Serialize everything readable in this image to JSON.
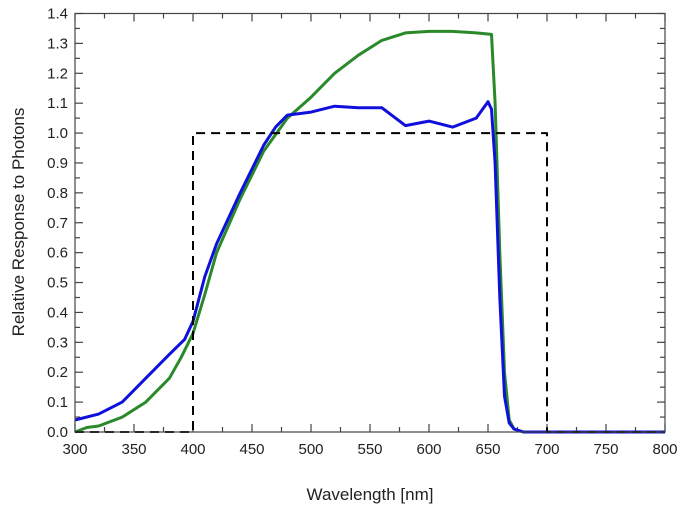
{
  "chart_data": {
    "type": "line",
    "title": "",
    "xlabel": "Wavelength [nm]",
    "ylabel": "Relative Response to Photons",
    "xlim": [
      300,
      800
    ],
    "ylim": [
      0,
      1.4
    ],
    "xticks": [
      300,
      350,
      400,
      450,
      500,
      550,
      600,
      650,
      700,
      750,
      800
    ],
    "yticks": [
      "0.0",
      "0.1",
      "0.2",
      "0.3",
      "0.4",
      "0.5",
      "0.6",
      "0.7",
      "0.8",
      "0.9",
      "1.0",
      "1.1",
      "1.2",
      "1.3",
      "1.4"
    ],
    "grid": false,
    "legend": "none",
    "series": [
      {
        "color": "#2a8a2a",
        "style": "solid",
        "x": [
          300,
          310,
          320,
          340,
          360,
          380,
          390,
          400,
          410,
          420,
          440,
          460,
          480,
          500,
          520,
          540,
          560,
          580,
          600,
          620,
          640,
          653,
          656,
          660,
          664,
          668,
          672,
          680,
          800
        ],
        "y": [
          0.0,
          0.015,
          0.02,
          0.05,
          0.1,
          0.18,
          0.25,
          0.33,
          0.46,
          0.6,
          0.78,
          0.94,
          1.05,
          1.12,
          1.2,
          1.26,
          1.31,
          1.335,
          1.34,
          1.34,
          1.335,
          1.33,
          1.1,
          0.6,
          0.2,
          0.04,
          0.01,
          0.0,
          0.0
        ]
      },
      {
        "color": "#1010dd",
        "style": "solid",
        "x": [
          300,
          320,
          340,
          360,
          380,
          393,
          400,
          410,
          420,
          440,
          460,
          470,
          480,
          500,
          520,
          540,
          560,
          580,
          600,
          620,
          640,
          650,
          653,
          656,
          660,
          664,
          668,
          672,
          680,
          800
        ],
        "y": [
          0.04,
          0.06,
          0.1,
          0.18,
          0.26,
          0.31,
          0.37,
          0.52,
          0.63,
          0.8,
          0.96,
          1.02,
          1.06,
          1.07,
          1.09,
          1.085,
          1.085,
          1.025,
          1.04,
          1.02,
          1.05,
          1.105,
          1.08,
          0.9,
          0.45,
          0.12,
          0.03,
          0.01,
          0.0,
          0.0
        ]
      },
      {
        "color": "#000000",
        "style": "dashed",
        "x": [
          300,
          400,
          400,
          700,
          700,
          800
        ],
        "y": [
          0,
          0,
          1.0,
          1.0,
          0,
          0
        ]
      }
    ]
  }
}
